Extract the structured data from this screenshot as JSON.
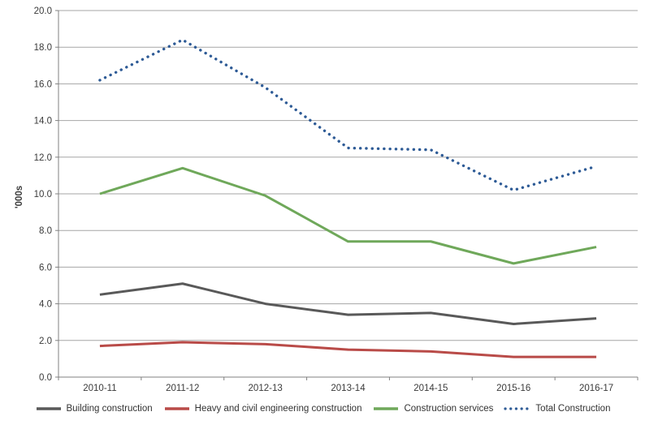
{
  "chart_data": {
    "type": "line",
    "title": "",
    "ylabel": "'000s",
    "xlabel": "",
    "ylim": [
      0,
      20
    ],
    "ytick_step": 2,
    "ytick_labels": [
      "0.0",
      "2.0",
      "4.0",
      "6.0",
      "8.0",
      "10.0",
      "12.0",
      "14.0",
      "16.0",
      "18.0",
      "20.0"
    ],
    "categories": [
      "2010-11",
      "2011-12",
      "2012-13",
      "2013-14",
      "2014-15",
      "2015-16",
      "2016-17"
    ],
    "series": [
      {
        "name": "Building construction",
        "color": "#595959",
        "style": "solid",
        "values": [
          4.5,
          5.1,
          4.0,
          3.4,
          3.5,
          2.9,
          3.2
        ]
      },
      {
        "name": "Heavy and civil engineering construction",
        "color": "#b94b48",
        "style": "solid",
        "values": [
          1.7,
          1.9,
          1.8,
          1.5,
          1.4,
          1.1,
          1.1
        ]
      },
      {
        "name": "Construction services",
        "color": "#6fa85a",
        "style": "solid",
        "values": [
          10.0,
          11.4,
          9.9,
          7.4,
          7.4,
          6.2,
          7.1
        ]
      },
      {
        "name": "Total Construction",
        "color": "#2e5b96",
        "style": "dotted",
        "values": [
          16.2,
          18.4,
          15.8,
          12.5,
          12.4,
          10.2,
          11.5
        ]
      }
    ],
    "grid": true,
    "legend_position": "bottom",
    "colors": {
      "grid": "#a6a6a6",
      "axis": "#808080",
      "tick_text": "#3a3a3a",
      "background": "#ffffff"
    }
  }
}
